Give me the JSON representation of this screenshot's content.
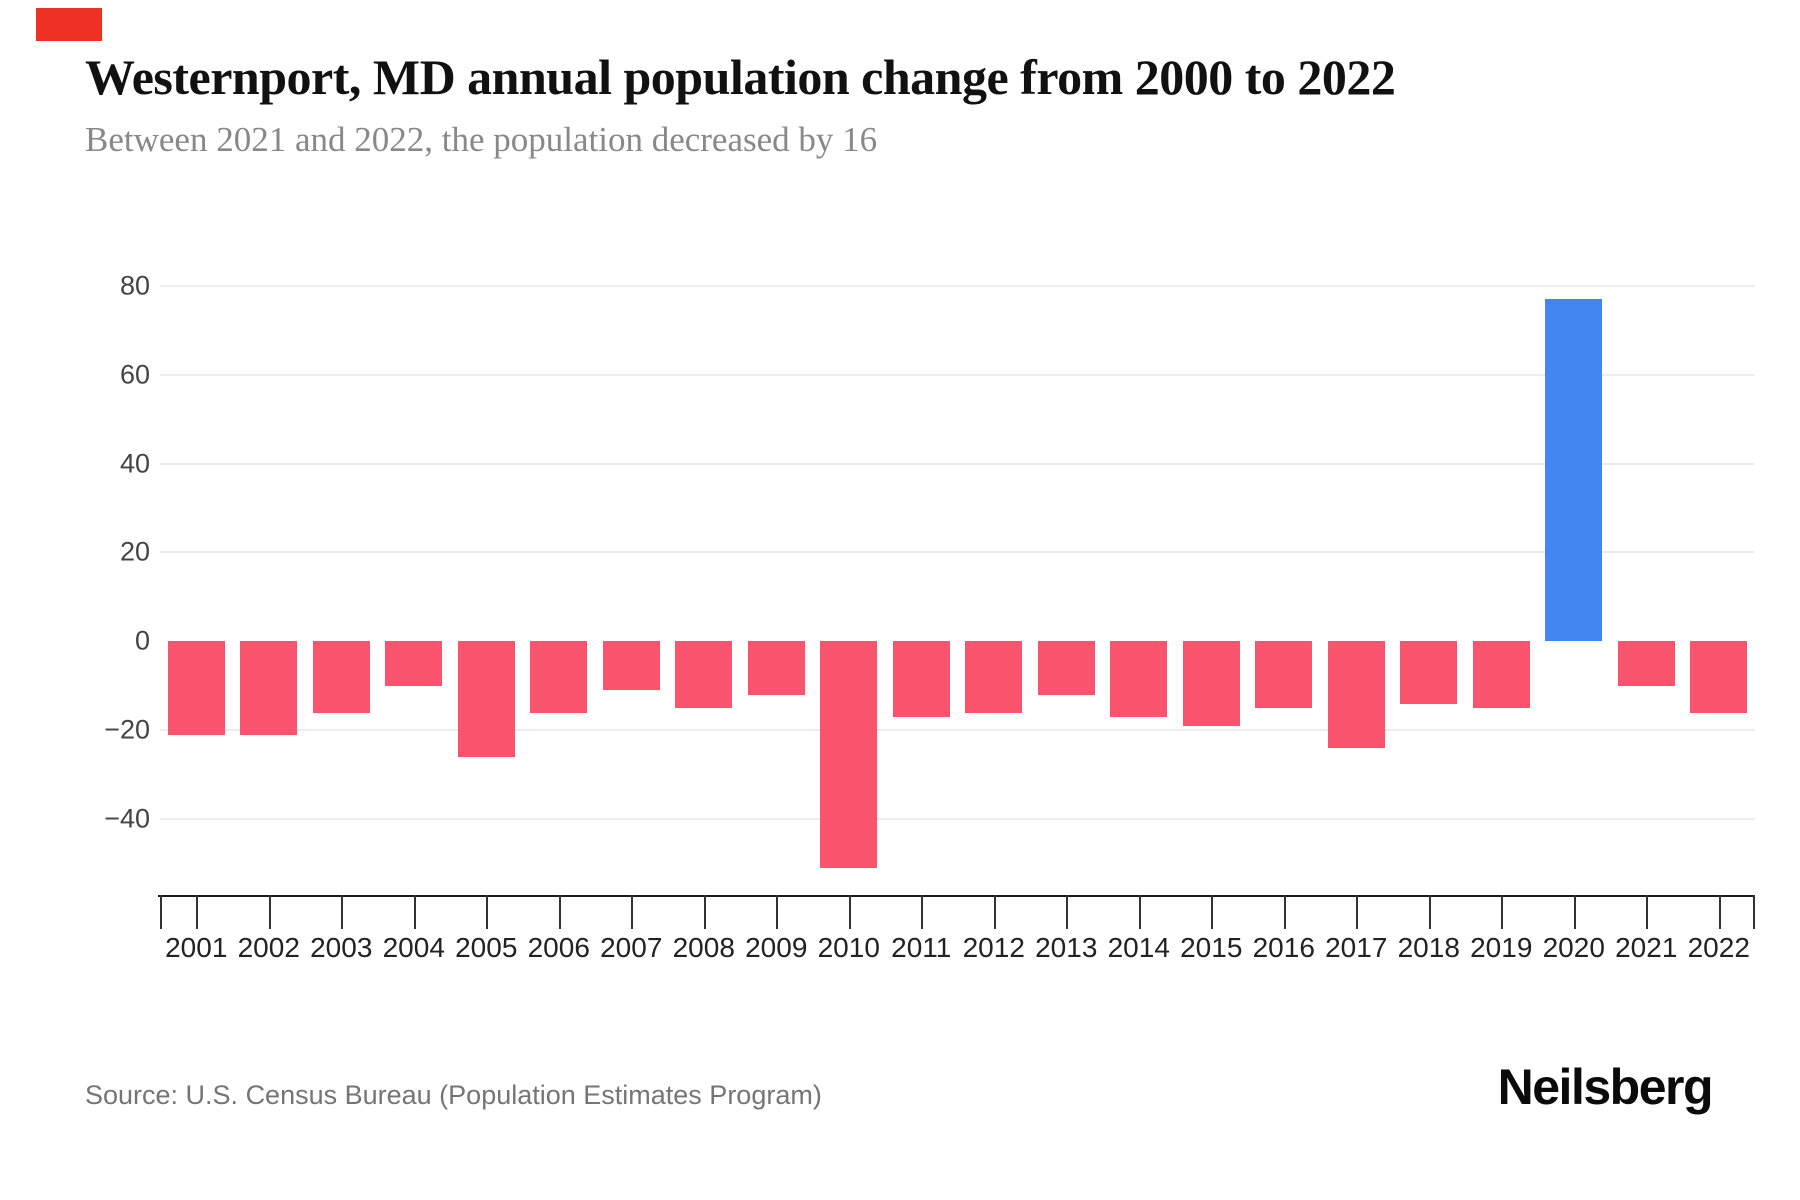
{
  "branding": {
    "logo_text": "Neilsberg",
    "accent_square_color": "#ee3124"
  },
  "header": {
    "title": "Westernport, MD annual population change from 2000 to 2022",
    "subtitle": "Between 2021 and 2022, the population decreased by 16"
  },
  "source_text": "Source: U.S. Census Bureau (Population Estimates Program)",
  "chart_data": {
    "type": "bar",
    "title": "Westernport, MD annual population change from 2000 to 2022",
    "subtitle": "Between 2021 and 2022, the population decreased by 16",
    "series_name": "Annual population change",
    "categories": [
      "2001",
      "2002",
      "2003",
      "2004",
      "2005",
      "2006",
      "2007",
      "2008",
      "2009",
      "2010",
      "2011",
      "2012",
      "2013",
      "2014",
      "2015",
      "2016",
      "2017",
      "2018",
      "2019",
      "2020",
      "2021",
      "2022"
    ],
    "values": [
      -21,
      -21,
      -16,
      -10,
      -26,
      -16,
      -11,
      -15,
      -12,
      -51,
      -17,
      -16,
      -12,
      -17,
      -19,
      -15,
      -24,
      -14,
      -15,
      77,
      -10,
      -16
    ],
    "yticks": [
      80,
      60,
      40,
      20,
      0,
      -20,
      -40
    ],
    "ylim": [
      -57,
      88
    ],
    "xlabel": "",
    "ylabel": "",
    "grid": "horizontal",
    "legend": "none",
    "negative_color": "#f9536e",
    "positive_color": "#4486ef",
    "gridline_color": "#ececec",
    "highlight": {
      "category": "2020",
      "value": 77,
      "color": "#4486ef"
    }
  }
}
